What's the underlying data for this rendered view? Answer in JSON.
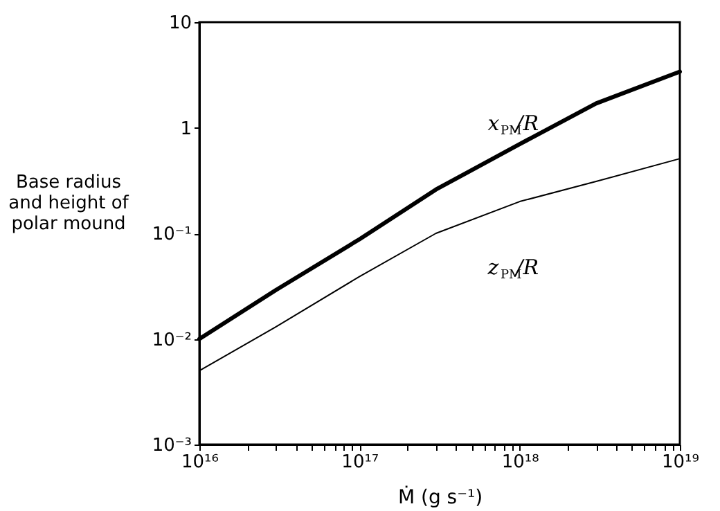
{
  "chart_data": {
    "type": "line",
    "xlabel": "Ṁ (g s⁻¹)",
    "ylabel": "Base radius and height of polar mound",
    "log": "xy",
    "grid": false,
    "marker": "none",
    "line_style": "solid",
    "x": [
      1e+16,
      3e+16,
      1e+17,
      3e+17,
      1e+18,
      3e+18,
      1e+19
    ],
    "series": [
      {
        "color": "#000000",
        "values": [
          0.01,
          0.029,
          0.088,
          0.26,
          0.7,
          1.7,
          3.4
        ]
      },
      {
        "color": "#000000",
        "values": [
          0.005,
          0.013,
          0.039,
          0.1,
          0.2,
          0.31,
          0.51
        ]
      }
    ],
    "annotations": [
      "x$_{PM}$/R",
      "z$_{PM}$/R"
    ],
    "xlim": [
      1e+16,
      1e+19
    ],
    "ylim": [
      0.001,
      10
    ],
    "xticks": [
      {
        "value": 1e+16,
        "label": "10¹⁶"
      },
      {
        "value": 2e+16,
        "label": null
      },
      {
        "value": 3e+16,
        "label": null
      },
      {
        "value": 4e+16,
        "label": null
      },
      {
        "value": 5e+16,
        "label": null
      },
      {
        "value": 6e+16,
        "label": null
      },
      {
        "value": 7e+16,
        "label": null
      },
      {
        "value": 8e+16,
        "label": null
      },
      {
        "value": 9e+16,
        "label": null
      },
      {
        "value": 1e+17,
        "label": "10¹⁷"
      },
      {
        "value": 2e+17,
        "label": null
      },
      {
        "value": 3e+17,
        "label": null
      },
      {
        "value": 4e+17,
        "label": null
      },
      {
        "value": 5e+17,
        "label": null
      },
      {
        "value": 6e+17,
        "label": null
      },
      {
        "value": 7e+17,
        "label": null
      },
      {
        "value": 8e+17,
        "label": null
      },
      {
        "value": 9e+17,
        "label": null
      },
      {
        "value": 1e+18,
        "label": "10¹⁸"
      },
      {
        "value": 2e+18,
        "label": null
      },
      {
        "value": 3e+18,
        "label": null
      },
      {
        "value": 4e+18,
        "label": null
      },
      {
        "value": 5e+18,
        "label": null
      },
      {
        "value": 6e+18,
        "label": null
      },
      {
        "value": 7e+18,
        "label": null
      },
      {
        "value": 8e+18,
        "label": null
      },
      {
        "value": 9e+18,
        "label": null
      },
      {
        "value": 1e+19,
        "label": "10¹⁹"
      }
    ],
    "yticks": [
      {
        "value": 0.001,
        "label": "10⁻³"
      },
      {
        "value": 0.01,
        "label": "10⁻²"
      },
      {
        "value": 0.1,
        "label": "10⁻¹"
      },
      1,
      10
    ]
  }
}
